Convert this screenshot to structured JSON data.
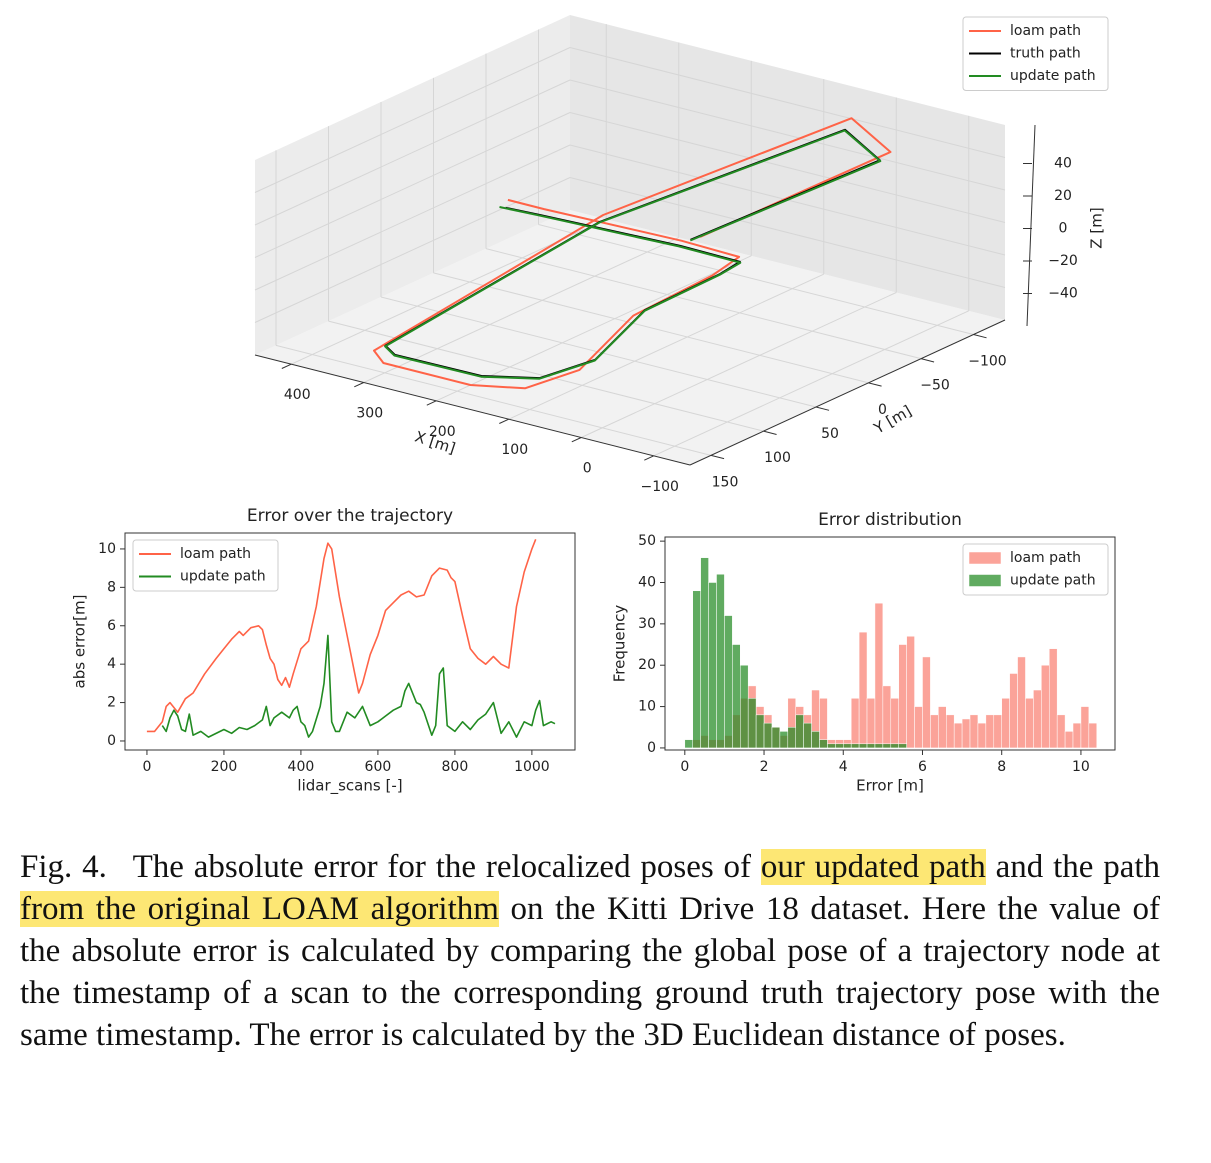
{
  "chart_data": [
    {
      "type": "line3d",
      "xlabel": "X [m]",
      "ylabel": "Y [m]",
      "zlabel": "Z [m]",
      "xlim": [
        -150,
        450
      ],
      "ylim": [
        -130,
        170
      ],
      "zlim": [
        -60,
        60
      ],
      "xticks": [
        400,
        300,
        200,
        100,
        0,
        {
          "value": -100,
          "label": "−100"
        }
      ],
      "yticks": [
        150,
        100,
        50,
        0,
        {
          "value": -50,
          "label": "−50"
        },
        {
          "value": -100,
          "label": "−100"
        }
      ],
      "zticks": [
        40,
        20,
        0,
        {
          "value": -20,
          "label": "−20"
        },
        {
          "value": -40,
          "label": "−40"
        }
      ],
      "legend": "upper right",
      "grid": true,
      "series": [
        {
          "name": "loam path",
          "color": "#ff6347",
          "x": [
            330,
            280,
            96,
            14,
            8,
            70,
            82,
            95,
            150,
            270,
            296,
            216,
            50,
            -50,
            62
          ],
          "y": [
            12,
            12,
            8,
            10,
            40,
            72,
            115,
            158,
            172,
            172,
            163,
            0,
            -122,
            -90,
            14
          ],
          "z": [
            2,
            2,
            2,
            2,
            0,
            -22,
            -44,
            -44,
            -44,
            -44,
            -42,
            2,
            44,
            44,
            10
          ]
        },
        {
          "name": "truth path",
          "color": "#000000",
          "x": [
            323,
            278,
            94,
            10,
            4,
            64,
            75,
            89,
            145,
            263,
            289,
            212,
            46,
            -44,
            65
          ],
          "y": [
            19,
            17,
            11,
            12,
            35,
            65,
            105,
            148,
            165,
            166,
            157,
            6,
            -113,
            -84,
            21
          ],
          "z": [
            0,
            0,
            0,
            0,
            0,
            -20,
            -40,
            -40,
            -40,
            -40,
            -40,
            0,
            40,
            40,
            10
          ]
        },
        {
          "name": "update path",
          "color": "#228b22",
          "x": [
            330,
            280,
            94,
            8,
            3,
            63,
            74,
            88,
            144,
            262,
            288,
            211,
            45,
            -46,
            64
          ],
          "y": [
            20,
            18,
            12,
            13,
            36,
            66,
            106,
            149,
            166,
            167,
            158,
            7,
            -112,
            -83,
            22
          ],
          "z": [
            0,
            0,
            0,
            0,
            0,
            -20,
            -40,
            -40,
            -40,
            -40,
            -40,
            0,
            40,
            40,
            10
          ]
        }
      ]
    },
    {
      "type": "line",
      "title": "Error over the trajectory",
      "xlabel": "lidar_scans [-]",
      "ylabel": "abs error[m]",
      "xlim": [
        -57,
        1112
      ],
      "ylim": [
        -0.47,
        10.83
      ],
      "xticks": [
        0,
        200,
        400,
        600,
        800,
        1000
      ],
      "yticks": [
        0,
        2,
        4,
        6,
        8,
        10
      ],
      "legend": "upper left",
      "grid": false,
      "series": [
        {
          "name": "loam path",
          "color": "#ff6347",
          "x": [
            0,
            20,
            40,
            50,
            60,
            80,
            100,
            120,
            150,
            180,
            200,
            220,
            240,
            250,
            270,
            290,
            300,
            310,
            320,
            330,
            340,
            350,
            360,
            370,
            380,
            400,
            420,
            440,
            460,
            470,
            480,
            500,
            520,
            540,
            550,
            560,
            580,
            600,
            620,
            640,
            660,
            680,
            700,
            720,
            740,
            760,
            780,
            790,
            800,
            820,
            840,
            860,
            880,
            900,
            920,
            940,
            960,
            980,
            1000,
            1010
          ],
          "values": [
            0.5,
            0.5,
            1.0,
            1.8,
            2.0,
            1.5,
            2.2,
            2.5,
            3.5,
            4.3,
            4.8,
            5.3,
            5.7,
            5.5,
            5.9,
            6.0,
            5.8,
            5.0,
            4.3,
            4.0,
            3.2,
            2.9,
            3.3,
            2.8,
            3.5,
            4.8,
            5.2,
            7.0,
            9.5,
            10.3,
            10.0,
            7.5,
            5.5,
            3.5,
            2.5,
            3.0,
            4.5,
            5.5,
            6.8,
            7.2,
            7.6,
            7.8,
            7.5,
            7.6,
            8.6,
            9.0,
            8.9,
            8.5,
            8.3,
            6.5,
            4.8,
            4.3,
            4.0,
            4.4,
            4.0,
            3.8,
            7.0,
            8.8,
            10.0,
            10.5
          ]
        },
        {
          "name": "update path",
          "color": "#228b22",
          "x": [
            40,
            50,
            60,
            70,
            80,
            90,
            100,
            110,
            120,
            140,
            160,
            200,
            220,
            240,
            260,
            280,
            300,
            310,
            320,
            330,
            350,
            370,
            380,
            390,
            400,
            410,
            420,
            430,
            450,
            460,
            470,
            480,
            490,
            500,
            520,
            540,
            560,
            580,
            600,
            620,
            640,
            660,
            670,
            680,
            700,
            710,
            720,
            740,
            750,
            760,
            770,
            780,
            800,
            820,
            840,
            860,
            880,
            900,
            920,
            940,
            960,
            980,
            1000,
            1010,
            1020,
            1030,
            1050,
            1060
          ],
          "values": [
            0.8,
            0.5,
            1.2,
            1.6,
            1.3,
            0.6,
            0.5,
            1.4,
            0.3,
            0.5,
            0.2,
            0.6,
            0.4,
            0.7,
            0.6,
            0.8,
            1.1,
            1.8,
            0.8,
            1.2,
            1.5,
            1.2,
            1.6,
            1.8,
            1.0,
            0.8,
            0.2,
            0.5,
            1.8,
            3.0,
            5.5,
            1.0,
            0.5,
            0.5,
            1.5,
            1.2,
            1.8,
            0.8,
            1.0,
            1.3,
            1.6,
            1.8,
            2.6,
            3.0,
            2.0,
            1.9,
            1.5,
            0.3,
            0.8,
            3.5,
            3.8,
            0.8,
            0.5,
            1.0,
            0.6,
            1.1,
            1.4,
            2.0,
            0.4,
            1.0,
            0.2,
            1.0,
            0.8,
            1.6,
            2.1,
            0.8,
            1.0,
            0.9
          ]
        }
      ]
    },
    {
      "type": "histogram",
      "title": "Error distribution",
      "xlabel": "Error [m]",
      "ylabel": "Frequency",
      "xlim": [
        -0.5,
        10.86
      ],
      "ylim": [
        -0.5,
        51
      ],
      "xticks": [
        0,
        2,
        4,
        6,
        8,
        10
      ],
      "yticks": [
        0,
        10,
        20,
        30,
        40,
        50
      ],
      "legend": "upper right",
      "grid": false,
      "series": [
        {
          "name": "loam path",
          "color": "#fa8072",
          "bins": [
            0.2,
            0.4,
            0.6,
            0.8,
            1.0,
            1.2,
            1.4,
            1.6,
            1.8,
            2.0,
            2.2,
            2.4,
            2.6,
            2.8,
            3.0,
            3.2,
            3.4,
            3.6,
            3.8,
            4.0,
            4.2,
            4.4,
            4.6,
            4.8,
            5.0,
            5.2,
            5.4,
            5.6,
            5.8,
            6.0,
            6.2,
            6.4,
            6.6,
            6.8,
            7.0,
            7.2,
            7.4,
            7.6,
            7.8,
            8.0,
            8.2,
            8.4,
            8.6,
            8.8,
            9.0,
            9.2,
            9.4,
            9.6,
            9.8,
            10.0,
            10.2,
            10.4
          ],
          "values": [
            2,
            3,
            2,
            2,
            3,
            8,
            12,
            15,
            10,
            8,
            5,
            3,
            12,
            10,
            8,
            14,
            12,
            2,
            2,
            2,
            12,
            28,
            12,
            35,
            15,
            12,
            25,
            27,
            10,
            22,
            8,
            10,
            8,
            6,
            7,
            8,
            6,
            8,
            8,
            12,
            18,
            22,
            12,
            14,
            20,
            24,
            8,
            4,
            6,
            10,
            6
          ]
        },
        {
          "name": "update path",
          "color": "#228b22",
          "bins": [
            0,
            0.2,
            0.4,
            0.6,
            0.8,
            1.0,
            1.2,
            1.4,
            1.6,
            1.8,
            2.0,
            2.2,
            2.4,
            2.6,
            2.8,
            3.0,
            3.2,
            3.4,
            3.6,
            3.8,
            4.0,
            4.2,
            4.4,
            4.6,
            4.8,
            5.0,
            5.2,
            5.4,
            5.6
          ],
          "values": [
            2,
            38,
            46,
            40,
            42,
            32,
            25,
            20,
            12,
            8,
            6,
            5,
            4,
            5,
            8,
            6,
            4,
            2,
            1,
            1,
            1,
            1,
            1,
            1,
            1,
            1,
            1,
            1
          ]
        }
      ]
    }
  ],
  "caption": {
    "label": "Fig. 4.",
    "parts": [
      {
        "text": "The absolute error for the relocalized poses of",
        "highlight": false
      },
      {
        "text": "our updated path",
        "highlight": true
      },
      {
        "text": "and the path",
        "highlight": false
      },
      {
        "text": "from the original LOAM algorithm",
        "highlight": true
      },
      {
        "text": "on the Kitti Drive 18 dataset. Here the value of the absolute error is calculated by comparing the global pose of a trajectory node at the timestamp of a scan to the corresponding ground truth trajectory pose with the same timestamp. The error is calculated by the 3D Euclidean distance of poses.",
        "highlight": false
      }
    ]
  }
}
